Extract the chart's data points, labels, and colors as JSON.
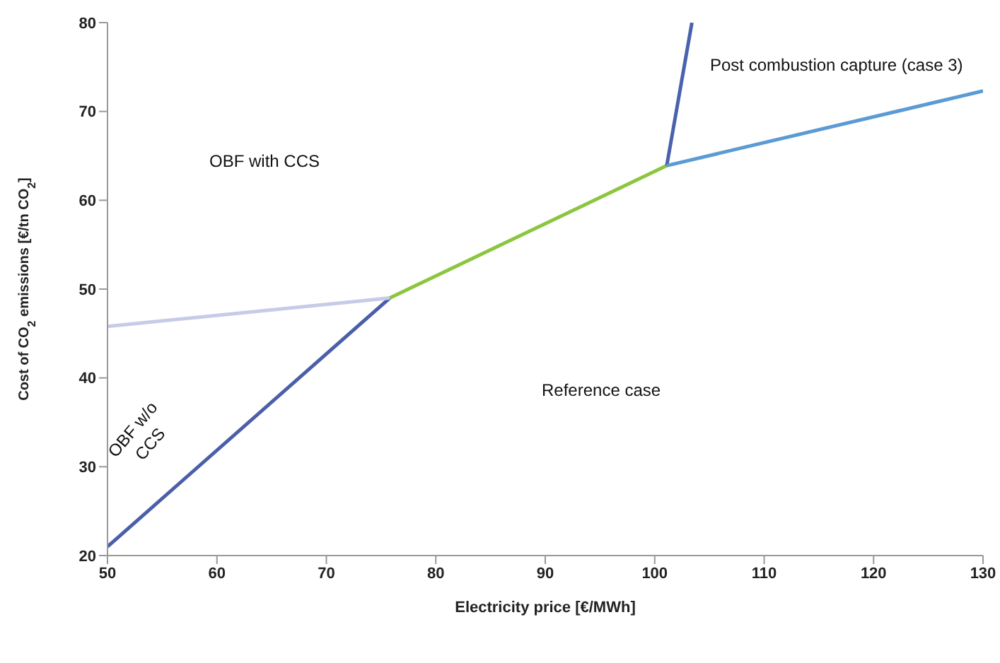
{
  "chart_data": {
    "type": "line",
    "xlabel": "Electricity price [€/MWh]",
    "ylabel": "Cost of CO$_{2}$ emissions [€/tn CO$_{2}$]",
    "xlim": [
      50,
      130
    ],
    "xticks": [
      50,
      60,
      70,
      80,
      90,
      100,
      110,
      120,
      130
    ],
    "ylim": [
      20,
      80
    ],
    "yticks": [
      20,
      30,
      40,
      50,
      60,
      70,
      80
    ],
    "grid": false,
    "marker": "none",
    "line_style": "solid",
    "series": [
      {
        "color": "#4a5fa8",
        "x": [
          50,
          75.8
        ],
        "values": [
          21,
          49
        ]
      },
      {
        "color": "#c8cbe8",
        "x": [
          50,
          75.8
        ],
        "values": [
          45.8,
          49
        ]
      },
      {
        "color": "#8cc63f",
        "x": [
          75.8,
          101.1
        ],
        "values": [
          49,
          63.9
        ]
      },
      {
        "color": "#4a62ad",
        "x": [
          101.1,
          103.4
        ],
        "values": [
          63.9,
          80
        ]
      },
      {
        "color": "#5b9bd5",
        "x": [
          101.1,
          130
        ],
        "values": [
          63.9,
          72.3
        ]
      }
    ],
    "annotations": [
      "OBF with CCS",
      "Post combustion capture (case 3)",
      "Reference case",
      "OBF w/o CCS"
    ]
  }
}
